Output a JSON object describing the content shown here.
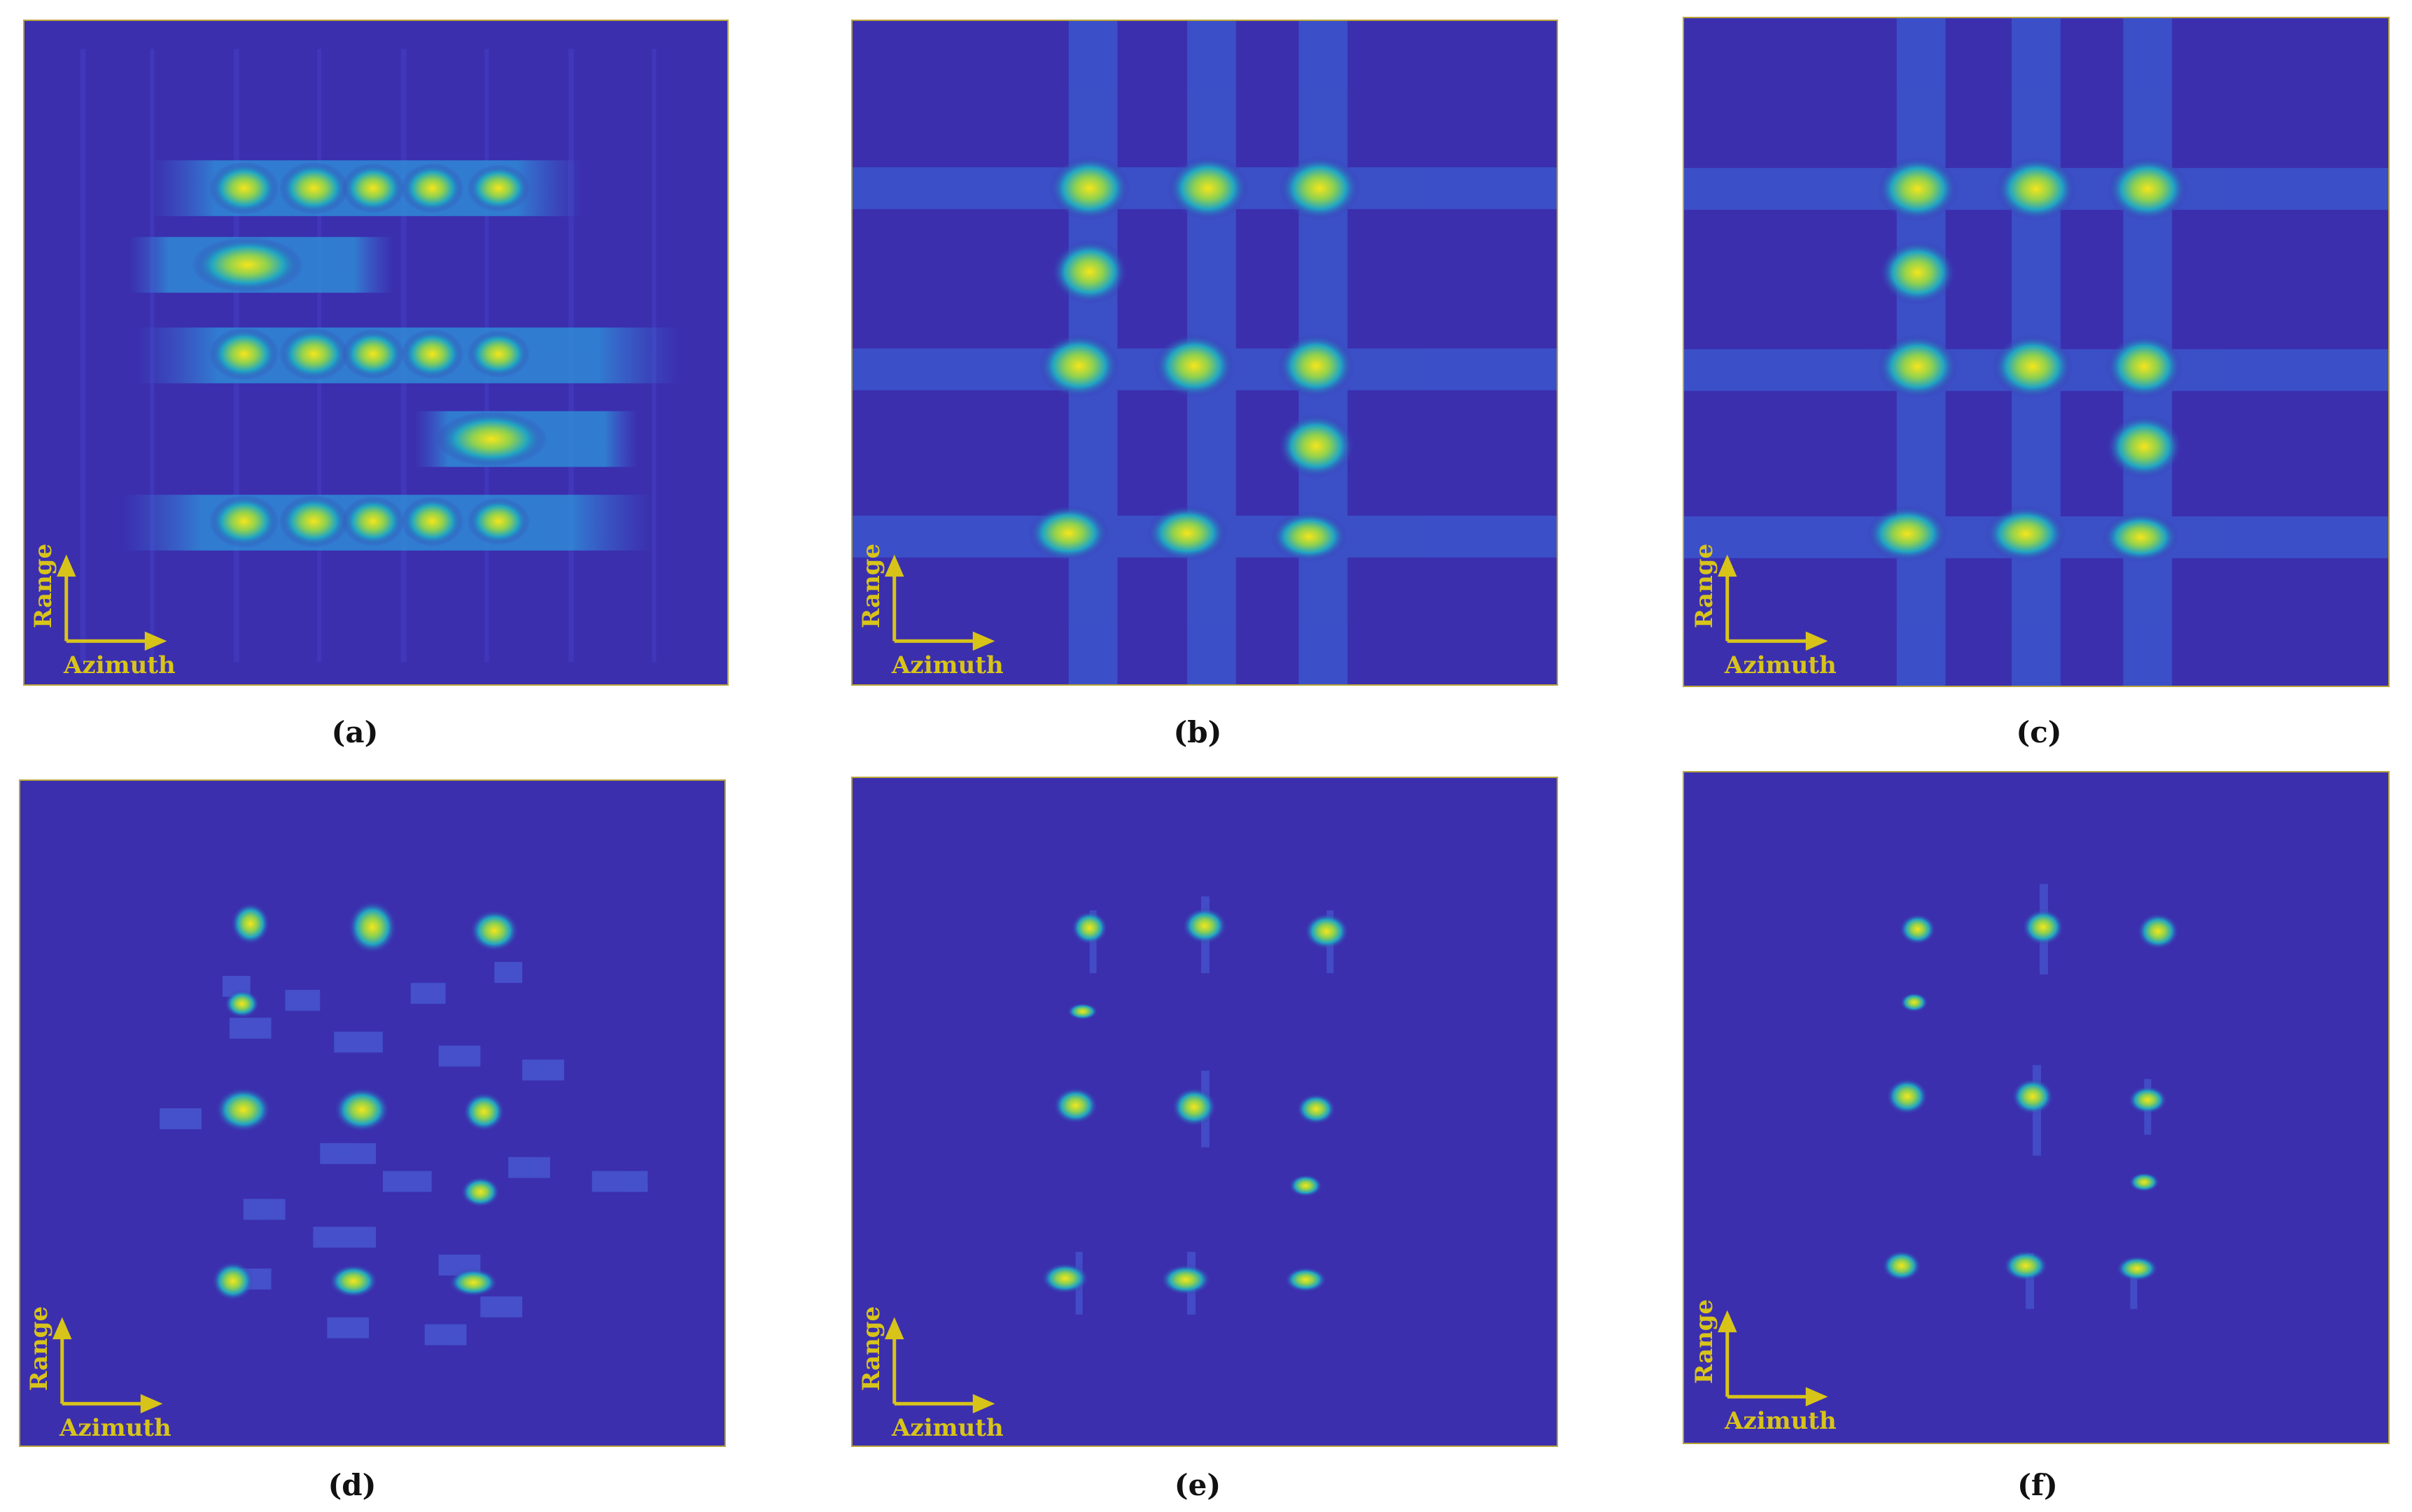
{
  "figure": {
    "panels": [
      {
        "id": "a",
        "caption": "(a)",
        "range_label": "Range",
        "azimuth_label": "Azimuth"
      },
      {
        "id": "b",
        "caption": "(b)",
        "range_label": "Range",
        "azimuth_label": "Azimuth"
      },
      {
        "id": "c",
        "caption": "(c)",
        "range_label": "Range",
        "azimuth_label": "Azimuth"
      },
      {
        "id": "d",
        "caption": "(d)",
        "range_label": "Range",
        "azimuth_label": "Azimuth"
      },
      {
        "id": "e",
        "caption": "(e)",
        "range_label": "Range",
        "azimuth_label": "Azimuth"
      },
      {
        "id": "f",
        "caption": "(f)",
        "range_label": "Range",
        "azimuth_label": "Azimuth"
      }
    ],
    "colors": {
      "background": "#3b2fae",
      "frame": "#b8a43a",
      "axis_annotation": "#d8c419",
      "peak_yellow": "#f5e51b",
      "mid_green": "#35b779",
      "low_cyan": "#1f9ed8"
    }
  }
}
